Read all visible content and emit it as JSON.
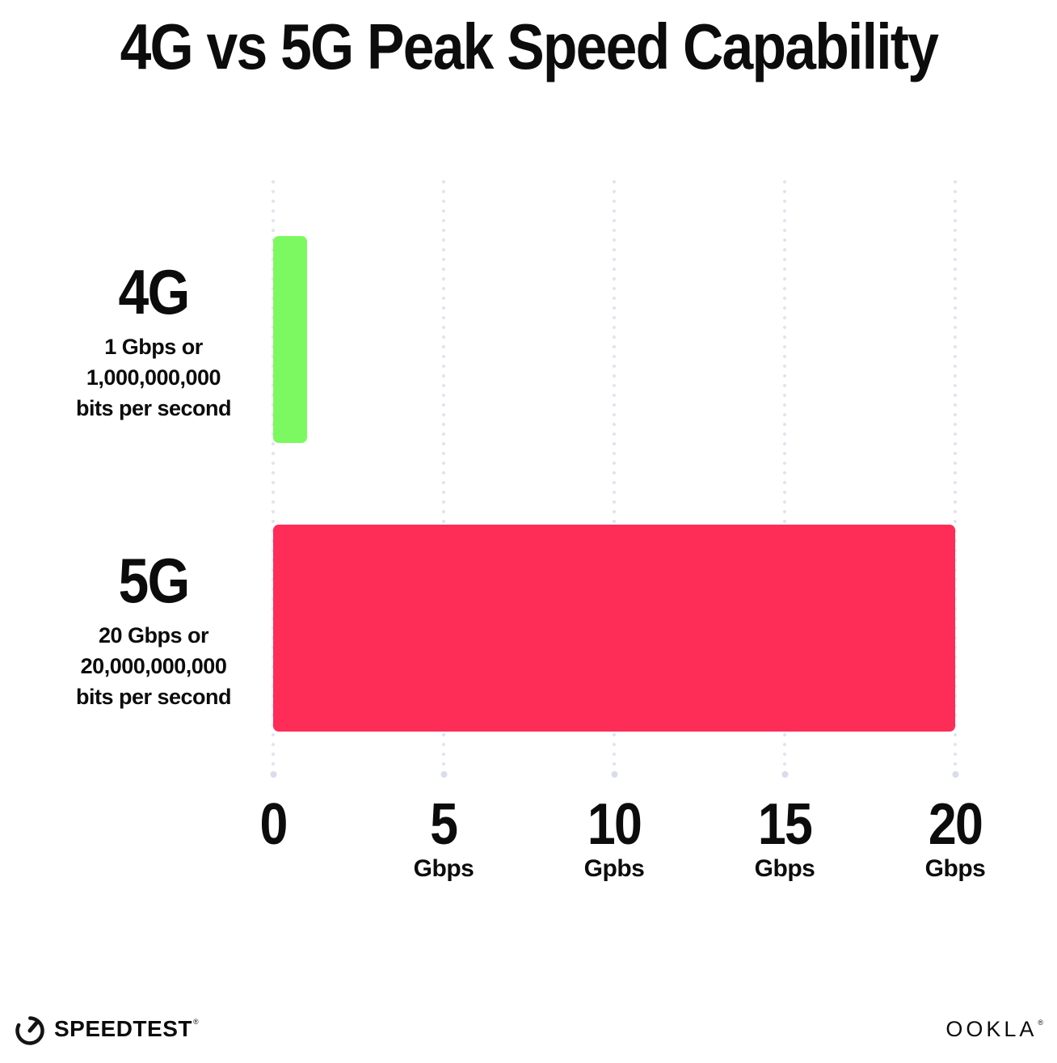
{
  "title": "4G vs 5G Peak Speed Capability",
  "chart_data": {
    "type": "bar",
    "orientation": "horizontal",
    "title": "4G vs 5G Peak Speed Capability",
    "categories": [
      "4G",
      "5G"
    ],
    "values": [
      1,
      20
    ],
    "value_unit": "Gbps",
    "xlim": [
      0,
      20
    ],
    "grid": "vertical-dotted",
    "legend": "none",
    "x_ticks": [
      {
        "label": "0",
        "unit": ""
      },
      {
        "label": "5",
        "unit": "Gbps"
      },
      {
        "label": "10",
        "unit": "Gpbs"
      },
      {
        "label": "15",
        "unit": "Gbps"
      },
      {
        "label": "20",
        "unit": "Gbps"
      }
    ]
  },
  "rows": [
    {
      "label": "4G",
      "sub1": "1 Gbps or",
      "sub2": "1,000,000,000",
      "sub3": "bits per second",
      "value": 1,
      "color": "#7CF961"
    },
    {
      "label": "5G",
      "sub1": "20 Gbps or",
      "sub2": "20,000,000,000",
      "sub3": "bits per second",
      "value": 20,
      "color": "#FD2D58"
    }
  ],
  "colors": {
    "bar_4g": "#7CF961",
    "bar_5g": "#FD2D58",
    "gridline": "#E1E4F0",
    "text": "#0C0C0C"
  },
  "footer": {
    "speedtest_label": "SPEEDTEST",
    "speedtest_mark": "®",
    "ookla_label": "OOKLA",
    "ookla_mark": "®"
  }
}
